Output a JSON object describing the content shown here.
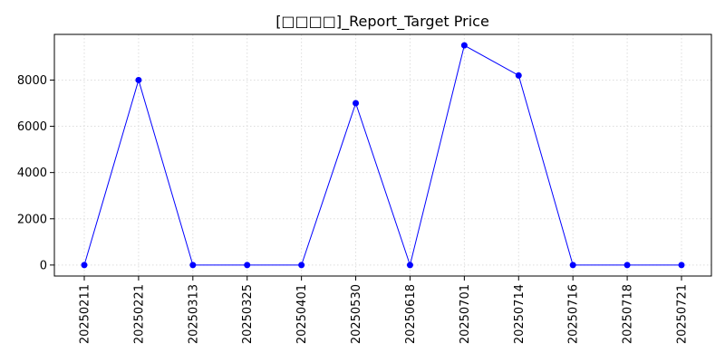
{
  "chart_data": {
    "type": "line",
    "title": "[□□□□]_Report_Target Price",
    "xlabel": "",
    "ylabel": "",
    "categories": [
      "20250211",
      "20250221",
      "20250313",
      "20250325",
      "20250401",
      "20250530",
      "20250618",
      "20250701",
      "20250714",
      "20250716",
      "20250718",
      "20250721"
    ],
    "series": [
      {
        "name": "Target Price",
        "values": [
          0,
          8000,
          0,
          0,
          0,
          7000,
          0,
          9500,
          8200,
          0,
          0,
          0
        ]
      }
    ],
    "ylim": [
      -475,
      9975
    ],
    "yticks": [
      0,
      2000,
      4000,
      6000,
      8000
    ],
    "ytick_labels": [
      "0",
      "2000",
      "4000",
      "6000",
      "8000"
    ],
    "grid": true,
    "colors": {
      "line": "#0000ff",
      "marker": "#0000ff",
      "grid": "#dddddd",
      "axis": "#000000"
    }
  }
}
